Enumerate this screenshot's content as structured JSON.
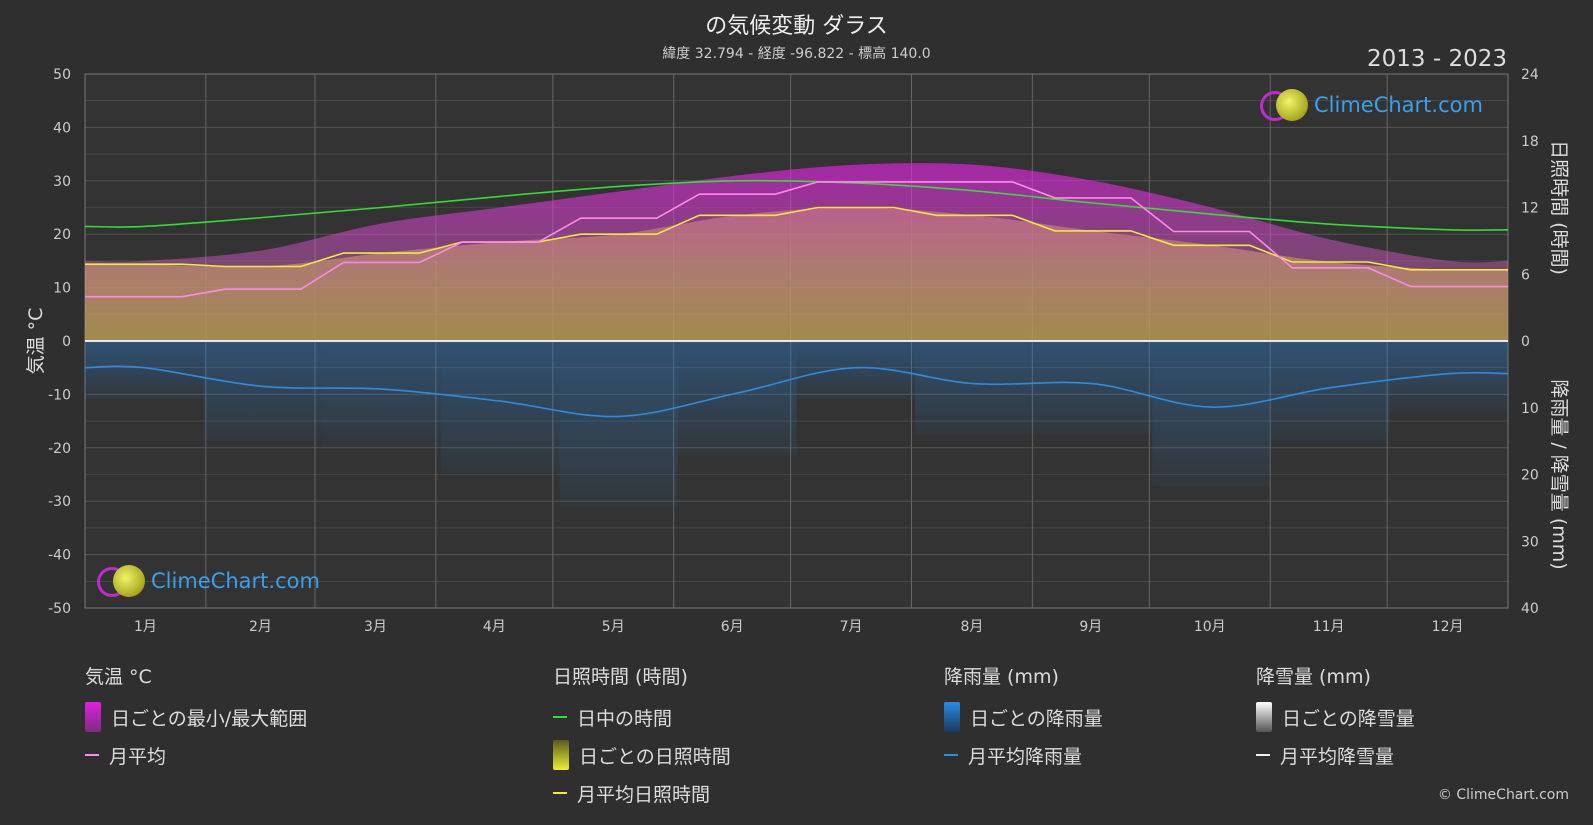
{
  "header": {
    "title": "の気候変動 ダラス",
    "subtitle": "緯度 32.794 - 経度 -96.822 - 標高 140.0",
    "years": "2013 - 2023",
    "copyright": "© ClimeChart.com"
  },
  "logo_text": "ClimeChart.com",
  "colors": {
    "background": "#2f2f2f",
    "temp_range": "#e020e0",
    "temp_avg": "#ff88ee",
    "daylight": "#33dd33",
    "sunshine_fill": "#b8b830",
    "sunshine_avg": "#eeee33",
    "rain": "#2a78c2",
    "rain_avg": "#2e8ce0",
    "snow": "#eeeeee"
  },
  "chart_data": {
    "type": "area",
    "months": [
      "1月",
      "2月",
      "3月",
      "4月",
      "5月",
      "6月",
      "7月",
      "8月",
      "9月",
      "10月",
      "11月",
      "12月"
    ],
    "axes": {
      "left": {
        "label": "気温 °C",
        "range": [
          -50,
          50
        ],
        "ticks": [
          "50",
          "40",
          "30",
          "20",
          "10",
          "0",
          "-10",
          "-20",
          "-30",
          "-40",
          "-50"
        ]
      },
      "right_top": {
        "label": "日照時間 (時間)",
        "range": [
          0,
          24
        ],
        "ticks": [
          "24",
          "18",
          "12",
          "6",
          "0"
        ]
      },
      "right_bottom": {
        "label": "降雨量 / 降雪量 (mm)",
        "range": [
          0,
          40
        ],
        "ticks": [
          "10",
          "20",
          "30",
          "40"
        ]
      }
    },
    "grid": true,
    "series": [
      {
        "name": "日ごとの最小/最大範囲",
        "unit": "°C",
        "min": [
          2,
          4,
          8,
          12,
          17,
          22,
          24,
          24,
          20,
          14,
          7,
          3
        ],
        "max": [
          15,
          17,
          22,
          25,
          28,
          31,
          33,
          33,
          30,
          25,
          19,
          15
        ]
      },
      {
        "name": "月平均",
        "unit": "°C",
        "values": [
          8.3,
          9.7,
          14.7,
          18.5,
          23.0,
          27.5,
          29.8,
          29.8,
          26.8,
          20.5,
          13.7,
          10.2
        ]
      },
      {
        "name": "日中の時間",
        "unit": "時間",
        "values": [
          10.3,
          11.1,
          12.0,
          13.0,
          13.9,
          14.4,
          14.2,
          13.5,
          12.4,
          11.4,
          10.5,
          10.0
        ]
      },
      {
        "name": "日ごとの日照時間",
        "unit": "時間",
        "values": [
          6.9,
          6.7,
          7.9,
          8.9,
          9.6,
          11.3,
          12.0,
          11.3,
          9.9,
          8.6,
          7.1,
          6.4
        ]
      },
      {
        "name": "月平均日照時間",
        "unit": "時間",
        "values": [
          6.9,
          6.7,
          7.9,
          8.9,
          9.6,
          11.3,
          12.0,
          11.3,
          9.9,
          8.6,
          7.1,
          6.4
        ]
      },
      {
        "name": "日ごとの降雨量",
        "unit": "mm",
        "values": [
          4.0,
          6.8,
          7.2,
          9.0,
          11.3,
          7.8,
          4.0,
          6.4,
          6.4,
          9.9,
          7.0,
          4.9
        ]
      },
      {
        "name": "月平均降雨量",
        "unit": "mm",
        "values": [
          4.0,
          6.8,
          7.2,
          9.0,
          11.3,
          7.8,
          4.0,
          6.4,
          6.4,
          9.9,
          7.0,
          4.9
        ]
      },
      {
        "name": "月平均降雪量",
        "unit": "mm",
        "values": [
          0,
          0,
          0,
          0,
          0,
          0,
          0,
          0,
          0,
          0,
          0,
          0
        ]
      }
    ]
  },
  "legend": {
    "temp": {
      "heading": "気温 °C",
      "items": [
        "日ごとの最小/最大範囲",
        "月平均"
      ]
    },
    "sun": {
      "heading": "日照時間 (時間)",
      "items": [
        "日中の時間",
        "日ごとの日照時間",
        "月平均日照時間"
      ]
    },
    "rain": {
      "heading": "降雨量 (mm)",
      "items": [
        "日ごとの降雨量",
        "月平均降雨量"
      ]
    },
    "snow": {
      "heading": "降雪量 (mm)",
      "items": [
        "日ごとの降雪量",
        "月平均降雪量"
      ]
    }
  }
}
